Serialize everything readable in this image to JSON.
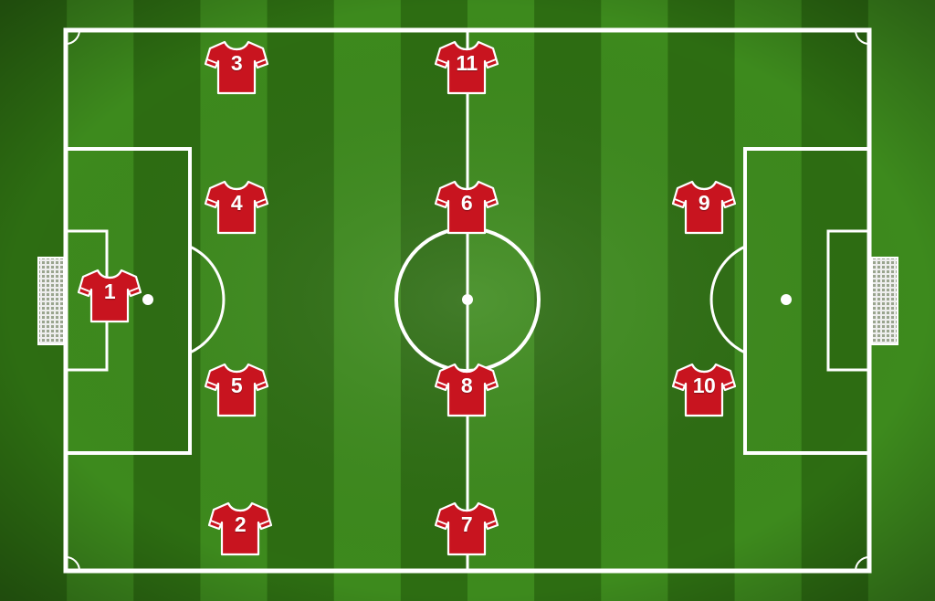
{
  "pitch": {
    "colors": {
      "stripe_light": "#3d8a1d",
      "stripe_dark": "#2d6d12",
      "lines": "#ffffff",
      "jersey": "#c8141f",
      "jersey_trim": "#ffffff",
      "number": "#ffffff"
    },
    "stripe_count": 14
  },
  "players": [
    {
      "number": "1",
      "role": "goalkeeper"
    },
    {
      "number": "2",
      "role": "defender"
    },
    {
      "number": "3",
      "role": "defender"
    },
    {
      "number": "4",
      "role": "defender"
    },
    {
      "number": "5",
      "role": "defender"
    },
    {
      "number": "6",
      "role": "midfielder"
    },
    {
      "number": "7",
      "role": "midfielder"
    },
    {
      "number": "8",
      "role": "midfielder"
    },
    {
      "number": "9",
      "role": "forward"
    },
    {
      "number": "10",
      "role": "forward"
    },
    {
      "number": "11",
      "role": "midfielder"
    }
  ]
}
